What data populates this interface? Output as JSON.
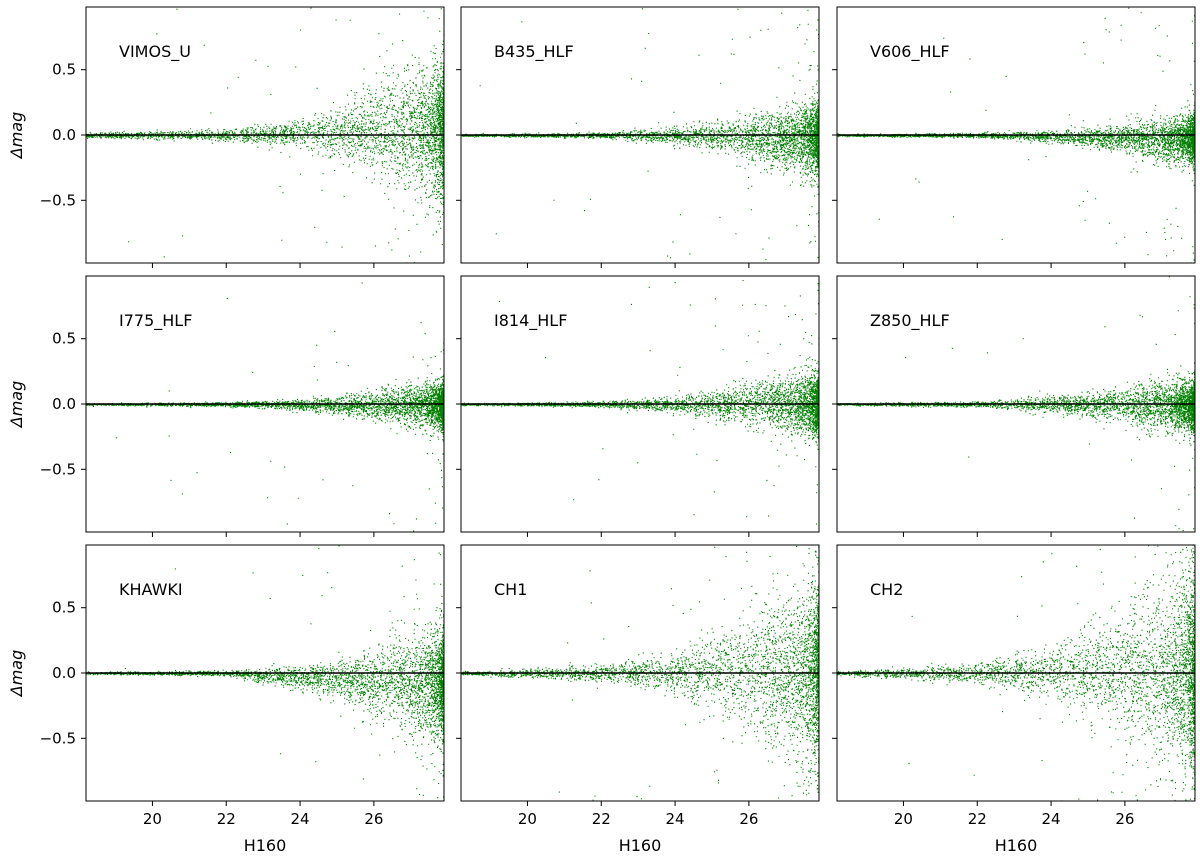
{
  "colors": {
    "points": "#008000",
    "reference_line": "#000000",
    "frame": "#000000",
    "background": "#ffffff"
  },
  "chart_data": {
    "type": "scatter",
    "layout": "3x3 grid, shared x and y axes",
    "xlabel": "H160",
    "ylabel": "Δmag",
    "xlim": [
      18.2,
      27.9
    ],
    "ylim": [
      -0.98,
      0.98
    ],
    "xticks": [
      20,
      22,
      24,
      26
    ],
    "xtick_labels": [
      "20",
      "22",
      "24",
      "26"
    ],
    "yticks": [
      0.5,
      0.0,
      -0.5
    ],
    "ytick_labels": [
      "0.5",
      "0.0",
      "−0.5"
    ],
    "reference_line_y": 0.0,
    "grid": false,
    "panels": [
      {
        "label": "VIMOS_U",
        "band_offset": 0.04,
        "scatter_at_mag": [
          [
            18.5,
            0.01
          ],
          [
            22.0,
            0.02
          ],
          [
            24.0,
            0.05
          ],
          [
            25.5,
            0.12
          ],
          [
            26.5,
            0.2
          ],
          [
            27.5,
            0.25
          ]
        ],
        "outlier_fraction": 0.05
      },
      {
        "label": "B435_HLF",
        "band_offset": -0.02,
        "scatter_at_mag": [
          [
            18.5,
            0.004
          ],
          [
            22.0,
            0.01
          ],
          [
            24.0,
            0.03
          ],
          [
            25.5,
            0.06
          ],
          [
            26.5,
            0.1
          ],
          [
            27.5,
            0.13
          ]
        ],
        "outlier_fraction": 0.035
      },
      {
        "label": "V606_HLF",
        "band_offset": -0.03,
        "scatter_at_mag": [
          [
            18.5,
            0.004
          ],
          [
            22.0,
            0.008
          ],
          [
            24.0,
            0.02
          ],
          [
            25.5,
            0.04
          ],
          [
            26.5,
            0.07
          ],
          [
            27.5,
            0.09
          ]
        ],
        "outlier_fraction": 0.02
      },
      {
        "label": "I775_HLF",
        "band_offset": -0.01,
        "scatter_at_mag": [
          [
            18.5,
            0.004
          ],
          [
            22.0,
            0.008
          ],
          [
            24.0,
            0.02
          ],
          [
            25.5,
            0.04
          ],
          [
            26.5,
            0.07
          ],
          [
            27.5,
            0.09
          ]
        ],
        "outlier_fraction": 0.02
      },
      {
        "label": "I814_HLF",
        "band_offset": 0.0,
        "scatter_at_mag": [
          [
            18.5,
            0.004
          ],
          [
            22.0,
            0.01
          ],
          [
            24.0,
            0.03
          ],
          [
            25.5,
            0.06
          ],
          [
            26.5,
            0.09
          ],
          [
            27.5,
            0.12
          ]
        ],
        "outlier_fraction": 0.025
      },
      {
        "label": "Z850_HLF",
        "band_offset": -0.01,
        "scatter_at_mag": [
          [
            18.5,
            0.004
          ],
          [
            22.0,
            0.01
          ],
          [
            24.0,
            0.03
          ],
          [
            25.5,
            0.05
          ],
          [
            26.5,
            0.08
          ],
          [
            27.5,
            0.1
          ]
        ],
        "outlier_fraction": 0.02
      },
      {
        "label": "KHAWKI",
        "band_offset": -0.08,
        "scatter_at_mag": [
          [
            18.5,
            0.004
          ],
          [
            22.0,
            0.01
          ],
          [
            24.0,
            0.04
          ],
          [
            25.5,
            0.09
          ],
          [
            26.5,
            0.16
          ],
          [
            27.5,
            0.22
          ]
        ],
        "outlier_fraction": 0.03
      },
      {
        "label": "CH1",
        "band_offset": 0.0,
        "scatter_at_mag": [
          [
            18.5,
            0.006
          ],
          [
            22.0,
            0.03
          ],
          [
            24.0,
            0.08
          ],
          [
            25.5,
            0.17
          ],
          [
            26.5,
            0.27
          ],
          [
            27.5,
            0.33
          ]
        ],
        "outlier_fraction": 0.04
      },
      {
        "label": "CH2",
        "band_offset": 0.0,
        "scatter_at_mag": [
          [
            18.5,
            0.008
          ],
          [
            22.0,
            0.04
          ],
          [
            24.0,
            0.1
          ],
          [
            25.5,
            0.2
          ],
          [
            26.5,
            0.3
          ],
          [
            27.5,
            0.38
          ]
        ],
        "outlier_fraction": 0.04
      }
    ]
  }
}
